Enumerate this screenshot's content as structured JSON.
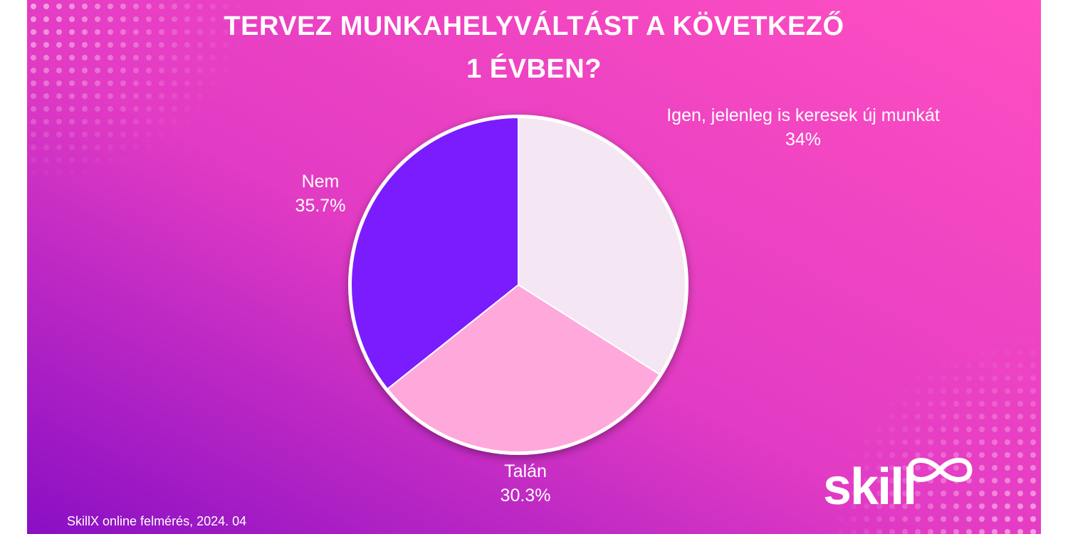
{
  "title_line1": "TERVEZ MUNKAHELYVÁLTÁST A KÖVETKEZŐ",
  "title_line2": "1 ÉVBEN?",
  "source": "SkillX online felmérés, 2024. 04",
  "logo_text": "skill",
  "colors": {
    "bg_left": "#8a0fc4",
    "bg_right": "#ff4fc1",
    "slice_igen": "#f5e6f4",
    "slice_talan": "#ffa8dc",
    "slice_nem": "#7b1cff",
    "border": "#ffffff"
  },
  "chart_data": {
    "type": "pie",
    "title": "TERVEZ MUNKAHELYVÁLTÁST A KÖVETKEZŐ 1 ÉVBEN?",
    "slices": [
      {
        "label": "Igen, jelenleg is keresek új munkát",
        "value": 34,
        "value_label": "34%",
        "color": "#f5e6f4"
      },
      {
        "label": "Talán",
        "value": 30.3,
        "value_label": "30.3%",
        "color": "#ffa8dc"
      },
      {
        "label": "Nem",
        "value": 35.7,
        "value_label": "35.7%",
        "color": "#7b1cff"
      }
    ],
    "start_angle": "12 o'clock",
    "direction": "clockwise"
  }
}
